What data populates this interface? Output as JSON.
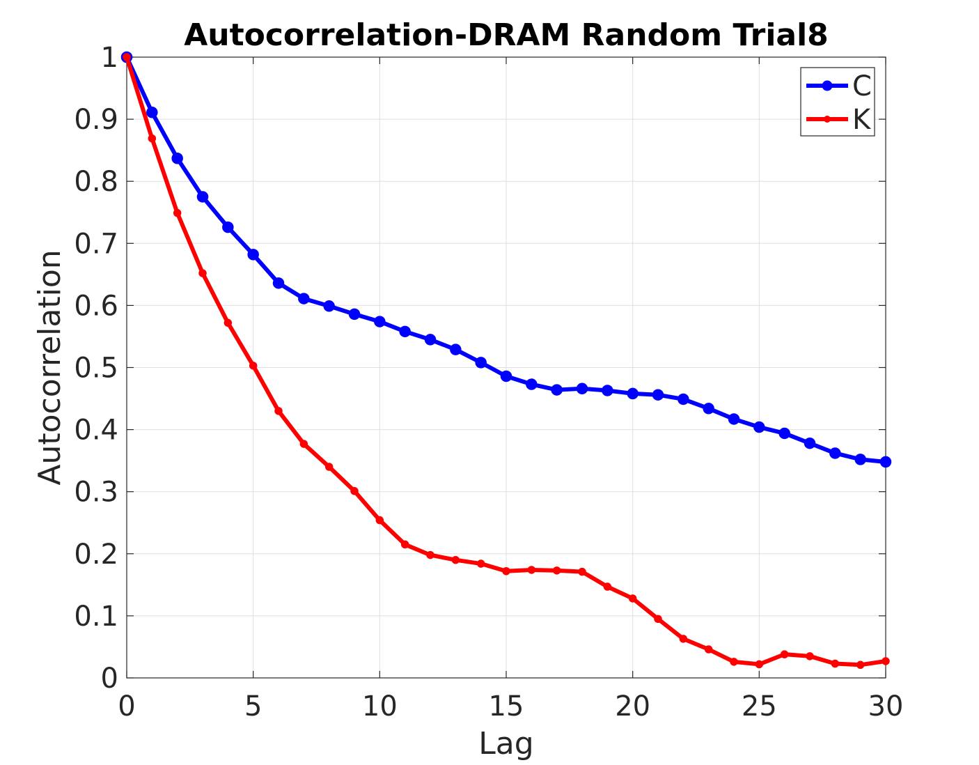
{
  "chart_data": {
    "type": "line",
    "title": "Autocorrelation-DRAM Random Trial8",
    "xlabel": "Lag",
    "ylabel": "Autocorrelation",
    "xlim": [
      0,
      30
    ],
    "ylim": [
      0,
      1
    ],
    "grid": true,
    "legend_position": "top-right",
    "x_ticks": [
      "0",
      "5",
      "10",
      "15",
      "20",
      "25",
      "30"
    ],
    "y_ticks": [
      "0",
      "0.1",
      "0.2",
      "0.3",
      "0.4",
      "0.5",
      "0.6",
      "0.7",
      "0.8",
      "0.9",
      "1"
    ],
    "x": [
      0,
      1,
      2,
      3,
      4,
      5,
      6,
      7,
      8,
      9,
      10,
      11,
      12,
      13,
      14,
      15,
      16,
      17,
      18,
      19,
      20,
      21,
      22,
      23,
      24,
      25,
      26,
      27,
      28,
      29,
      30
    ],
    "series": [
      {
        "name": "C",
        "color": "#0000ff",
        "marker": "large-dot",
        "values": [
          1.0,
          0.911,
          0.837,
          0.775,
          0.726,
          0.682,
          0.636,
          0.611,
          0.599,
          0.586,
          0.574,
          0.558,
          0.545,
          0.529,
          0.508,
          0.486,
          0.473,
          0.464,
          0.466,
          0.463,
          0.458,
          0.456,
          0.449,
          0.434,
          0.417,
          0.404,
          0.394,
          0.378,
          0.362,
          0.352,
          0.348
        ]
      },
      {
        "name": "K",
        "color": "#ff0000",
        "marker": "small-dot",
        "values": [
          1.0,
          0.869,
          0.749,
          0.652,
          0.572,
          0.503,
          0.43,
          0.377,
          0.34,
          0.301,
          0.254,
          0.215,
          0.198,
          0.19,
          0.184,
          0.172,
          0.174,
          0.173,
          0.171,
          0.147,
          0.128,
          0.095,
          0.063,
          0.046,
          0.026,
          0.022,
          0.038,
          0.035,
          0.023,
          0.021,
          0.027
        ]
      }
    ]
  }
}
